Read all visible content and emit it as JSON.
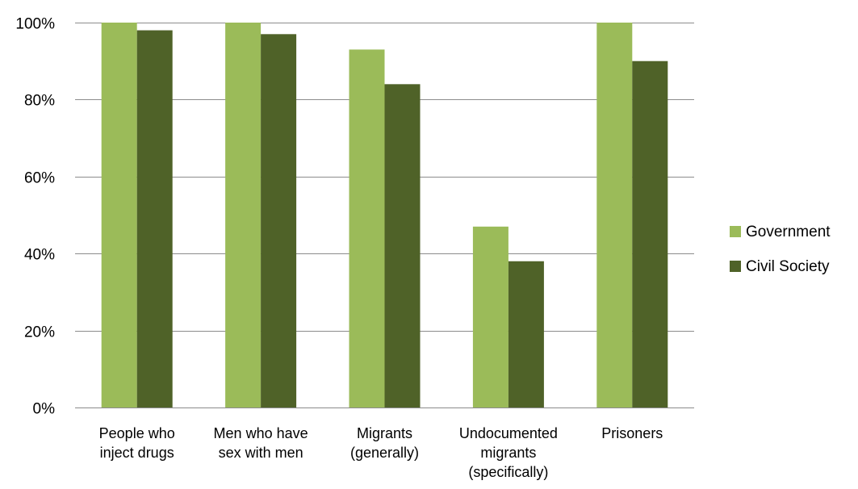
{
  "chart_data": {
    "type": "bar",
    "title": "",
    "xlabel": "",
    "ylabel": "",
    "categories": [
      [
        "People who",
        "inject drugs"
      ],
      [
        "Men who have",
        "sex with men"
      ],
      [
        "Migrants",
        "(generally)"
      ],
      [
        "Undocumented",
        "migrants",
        "(specifically)"
      ],
      [
        "Prisoners"
      ]
    ],
    "series": [
      {
        "name": "Government",
        "color": "#9BBB59",
        "values": [
          100,
          100,
          93,
          47,
          100
        ]
      },
      {
        "name": "Civil Society",
        "color": "#4F6228",
        "values": [
          98,
          97,
          84,
          38,
          90
        ]
      }
    ],
    "ylim": [
      0,
      100
    ],
    "yticks": [
      0,
      20,
      40,
      60,
      80,
      100
    ],
    "ytick_labels": [
      "0%",
      "20%",
      "40%",
      "60%",
      "80%",
      "100%"
    ],
    "grid": true,
    "legend": "right"
  }
}
